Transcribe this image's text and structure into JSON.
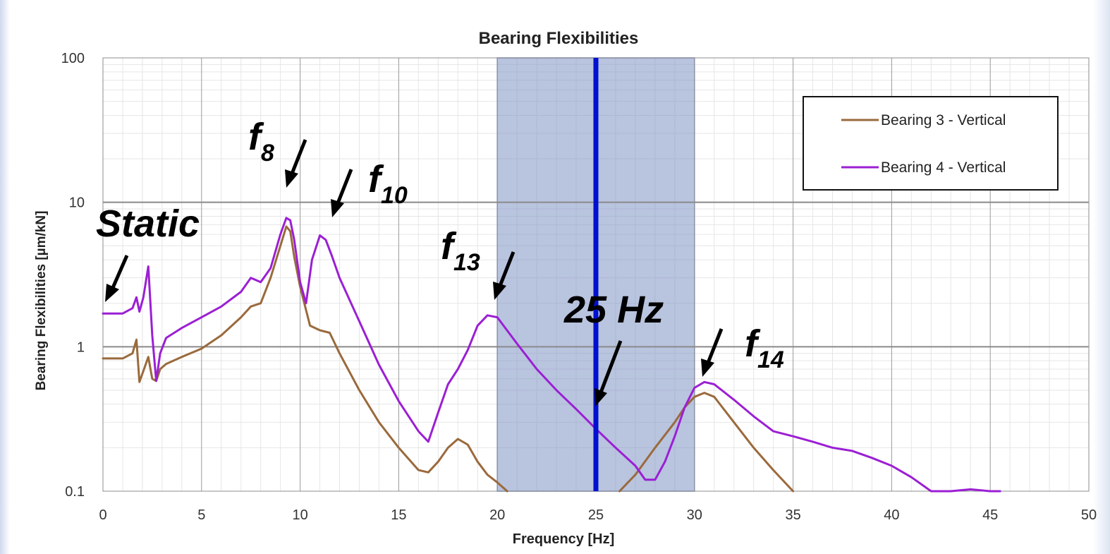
{
  "chart_data": {
    "type": "line",
    "title": "Bearing Flexibilities",
    "xlabel": "Frequency [Hz]",
    "ylabel": "Bearing Flexibilities  [µm/kN]",
    "xlim": [
      0,
      50
    ],
    "ylim": [
      0.1,
      100
    ],
    "yscale": "log",
    "grid": true,
    "x_ticks": [
      "0",
      "5",
      "10",
      "15",
      "20",
      "25",
      "30",
      "35",
      "40",
      "45",
      "50"
    ],
    "y_ticks": [
      "0.1",
      "1",
      "10",
      "100"
    ],
    "legend_position": "top-right",
    "series": [
      {
        "name": "Bearing 3 - Vertical",
        "color": "#9a6a3c",
        "x": [
          0,
          1,
          1.5,
          1.7,
          1.85,
          2.05,
          2.3,
          2.5,
          2.7,
          2.9,
          3.2,
          4,
          5,
          6,
          7,
          7.5,
          8,
          8.5,
          9,
          9.3,
          9.5,
          9.7,
          10,
          10.5,
          11,
          11.5,
          12,
          13,
          14,
          15,
          16,
          16.5,
          17,
          17.5,
          18,
          18.5,
          19,
          19.5,
          20,
          20.5,
          26.2,
          27,
          28,
          29,
          29.5,
          30,
          30.5,
          31,
          32,
          33,
          34,
          35
        ],
        "y": [
          0.83,
          0.83,
          0.9,
          1.12,
          0.57,
          0.68,
          0.85,
          0.6,
          0.58,
          0.7,
          0.76,
          0.85,
          0.97,
          1.2,
          1.6,
          1.9,
          2.0,
          3.0,
          5.0,
          6.8,
          6.3,
          4.2,
          2.6,
          1.4,
          1.3,
          1.25,
          0.9,
          0.5,
          0.3,
          0.2,
          0.14,
          0.135,
          0.16,
          0.2,
          0.23,
          0.21,
          0.16,
          0.13,
          0.115,
          0.1,
          0.1,
          0.13,
          0.2,
          0.3,
          0.38,
          0.45,
          0.48,
          0.45,
          0.3,
          0.2,
          0.14,
          0.1
        ]
      },
      {
        "name": "Bearing 4 - Vertical",
        "color": "#9b1fd4",
        "x": [
          0,
          1,
          1.5,
          1.7,
          1.85,
          2.05,
          2.3,
          2.5,
          2.7,
          2.9,
          3.2,
          4,
          5,
          6,
          7,
          7.5,
          8,
          8.5,
          9,
          9.3,
          9.5,
          9.7,
          10,
          10.3,
          10.6,
          11,
          11.3,
          11.6,
          12,
          13,
          14,
          15,
          16,
          16.5,
          17,
          17.5,
          18,
          18.5,
          19,
          19.5,
          20,
          21,
          22,
          23,
          24,
          25,
          26,
          27,
          27.5,
          28,
          28.5,
          29,
          29.5,
          30,
          30.5,
          31,
          32,
          33,
          34,
          35,
          36,
          37,
          38,
          39,
          40,
          41,
          42,
          42.5,
          43,
          44,
          45,
          45.5
        ],
        "y": [
          1.7,
          1.7,
          1.85,
          2.2,
          1.75,
          2.2,
          3.6,
          1.2,
          0.58,
          0.9,
          1.15,
          1.35,
          1.6,
          1.9,
          2.4,
          3.0,
          2.8,
          3.5,
          6.0,
          7.8,
          7.5,
          5.5,
          2.8,
          2.0,
          4.0,
          5.9,
          5.5,
          4.3,
          3.0,
          1.5,
          0.75,
          0.42,
          0.26,
          0.22,
          0.35,
          0.55,
          0.7,
          0.95,
          1.4,
          1.65,
          1.6,
          1.05,
          0.7,
          0.5,
          0.37,
          0.27,
          0.2,
          0.15,
          0.12,
          0.12,
          0.16,
          0.24,
          0.38,
          0.52,
          0.57,
          0.55,
          0.43,
          0.33,
          0.26,
          0.24,
          0.22,
          0.2,
          0.19,
          0.17,
          0.15,
          0.125,
          0.1,
          0.1,
          0.1,
          0.103,
          0.1,
          0.095
        ]
      }
    ],
    "shaded_band": {
      "x0": 20,
      "x1": 30,
      "color": "#7f93c4"
    },
    "vertical_line": {
      "x": 25,
      "color": "#0010d0"
    },
    "annotations": [
      {
        "text": "Static",
        "sub": ""
      },
      {
        "text": "f",
        "sub": "8"
      },
      {
        "text": "f",
        "sub": "10"
      },
      {
        "text": "f",
        "sub": "13"
      },
      {
        "text": "25 Hz",
        "sub": ""
      },
      {
        "text": "f",
        "sub": "14"
      }
    ]
  }
}
